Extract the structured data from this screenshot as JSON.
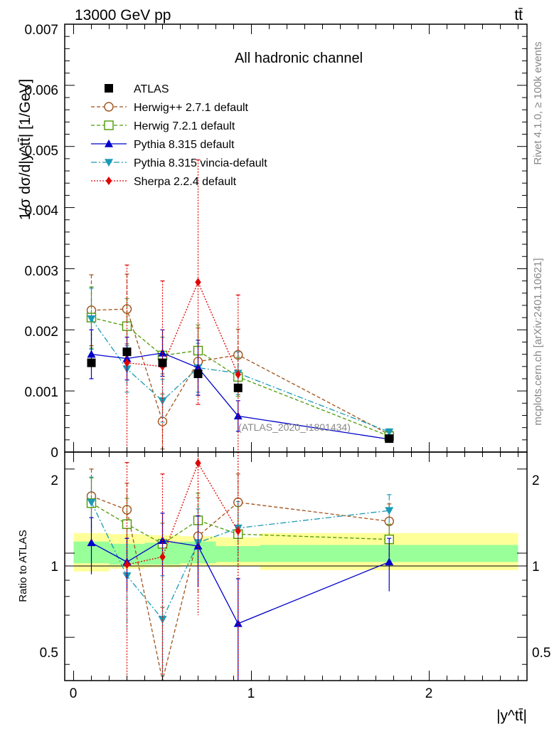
{
  "header": {
    "energy_label": "13000 GeV pp",
    "process_label": "tt̄"
  },
  "side_labels": {
    "rivet": "Rivet 4.1.0, ≥ 100k events",
    "mcplots": "mcplots.cern.ch [arXiv:2401.10621]"
  },
  "chart_data": {
    "type": "line",
    "title": "All hadronic channel",
    "analysis_tag": "(ATLAS_2020_I1801434)",
    "xlabel": "|y^tt̄|",
    "ylabel_main": "1/σ dσ/d|y^tt̄| [1/GeV]",
    "ylabel_ratio": "Ratio to ATLAS",
    "xlim": [
      -0.05,
      2.55
    ],
    "ylim_main": [
      0,
      0.007
    ],
    "ylim_ratio": [
      0.35,
      2.3
    ],
    "x_ticks": [
      "0",
      "1",
      "2"
    ],
    "y_ticks_main": [
      "0",
      "0.001",
      "0.002",
      "0.003",
      "0.004",
      "0.005",
      "0.006",
      "0.007"
    ],
    "y_ticks_ratio": [
      "0.5",
      "1",
      "2"
    ],
    "bins": [
      [
        0.0,
        0.2
      ],
      [
        0.2,
        0.4
      ],
      [
        0.4,
        0.6
      ],
      [
        0.6,
        0.8
      ],
      [
        0.8,
        1.05
      ],
      [
        1.05,
        2.5
      ]
    ],
    "ratio_bands": {
      "stat": [
        [
          0.92,
          1.1
        ],
        [
          0.91,
          1.08
        ],
        [
          0.91,
          1.09
        ],
        [
          0.92,
          1.1
        ],
        [
          0.93,
          1.06
        ],
        [
          0.93,
          1.07
        ]
      ],
      "total": [
        [
          0.86,
          1.18
        ],
        [
          0.88,
          1.17
        ],
        [
          0.89,
          1.16
        ],
        [
          0.9,
          1.15
        ],
        [
          0.9,
          1.14
        ],
        [
          0.87,
          1.18
        ]
      ]
    },
    "series": [
      {
        "name": "ATLAS",
        "color": "#000000",
        "marker": "square-filled",
        "dash": "none",
        "x": [
          0.1,
          0.3,
          0.5,
          0.7,
          0.925,
          1.775
        ],
        "y": [
          0.00146,
          0.00164,
          0.00146,
          0.00128,
          0.00105,
          0.00022
        ],
        "err": [
          0,
          0,
          0,
          0,
          0,
          0
        ],
        "ratio": [
          1.0,
          1.0,
          1.0,
          1.0,
          1.0,
          1.0
        ],
        "ratio_err": [
          0,
          0,
          0,
          0,
          0,
          0
        ]
      },
      {
        "name": "Herwig++ 2.7.1 default",
        "color": "#a0521a",
        "marker": "circle-open",
        "dash": "5,3",
        "x": [
          0.1,
          0.3,
          0.5,
          0.7,
          0.925,
          1.775
        ],
        "y": [
          0.00232,
          0.00234,
          0.0005,
          0.00148,
          0.00159,
          0.00029
        ],
        "err": [
          0.00058,
          0.00057,
          0.00045,
          0.00055,
          0.00042,
          5e-05
        ],
        "ratio": [
          1.6,
          1.43,
          0.34,
          1.15,
          1.52,
          1.3
        ],
        "ratio_err": [
          0.4,
          0.35,
          0.3,
          0.43,
          0.4,
          0.2
        ]
      },
      {
        "name": "Herwig 7.2.1 default",
        "color": "#4e9a06",
        "marker": "square-open",
        "dash": "5,3",
        "x": [
          0.1,
          0.3,
          0.5,
          0.7,
          0.925,
          1.775
        ],
        "y": [
          0.0022,
          0.00206,
          0.00158,
          0.00166,
          0.00123,
          0.00026
        ],
        "err": [
          0.0005,
          0.00045,
          0.0003,
          0.00042,
          0.00032,
          4e-05
        ],
        "ratio": [
          1.51,
          1.27,
          1.08,
          1.31,
          1.17,
          1.12
        ],
        "ratio_err": [
          0.35,
          0.3,
          0.2,
          0.33,
          0.3,
          0.15
        ]
      },
      {
        "name": "Pythia 8.315 default",
        "color": "#0000cc",
        "marker": "triangle-up",
        "dash": "none",
        "x": [
          0.1,
          0.3,
          0.5,
          0.7,
          0.925,
          1.775
        ],
        "y": [
          0.0016,
          0.00153,
          0.00162,
          0.00138,
          0.00059,
          0.00021
        ],
        "err": [
          0.0004,
          0.00035,
          0.00038,
          0.00045,
          0.00025,
          4e-05
        ],
        "ratio": [
          1.09,
          0.93,
          1.11,
          1.06,
          0.56,
          0.93
        ],
        "ratio_err": [
          0.25,
          0.2,
          0.28,
          0.3,
          0.25,
          0.2
        ]
      },
      {
        "name": "Pythia 8.315 vincia-default",
        "color": "#1a9ab4",
        "marker": "triangle-down",
        "dash": "8,3,2,3",
        "x": [
          0.1,
          0.3,
          0.5,
          0.7,
          0.925,
          1.775
        ],
        "y": [
          0.00218,
          0.00136,
          0.00084,
          0.00138,
          0.00129,
          0.00033
        ],
        "err": [
          0.0005,
          0.00038,
          0.00035,
          0.0004,
          0.00035,
          5e-05
        ],
        "ratio": [
          1.52,
          0.83,
          0.58,
          1.09,
          1.23,
          1.42
        ],
        "ratio_err": [
          0.35,
          0.3,
          0.25,
          0.35,
          0.3,
          0.2
        ]
      },
      {
        "name": "Sherpa 2.2.4 default",
        "color": "#e00000",
        "marker": "diamond",
        "dash": "2,2",
        "x": [
          0.1,
          0.3,
          0.5,
          0.7,
          0.925,
          1.775
        ],
        "y": [
          null,
          0.00146,
          0.0014,
          0.00278,
          0.00127,
          null
        ],
        "err": [
          0,
          0.0016,
          0.0014,
          0.002,
          0.0013,
          0
        ],
        "ratio": [
          null,
          0.91,
          0.97,
          2.1,
          1.2,
          null
        ],
        "ratio_err": [
          0,
          1.2,
          0.95,
          1.5,
          1.2,
          0
        ]
      }
    ]
  }
}
